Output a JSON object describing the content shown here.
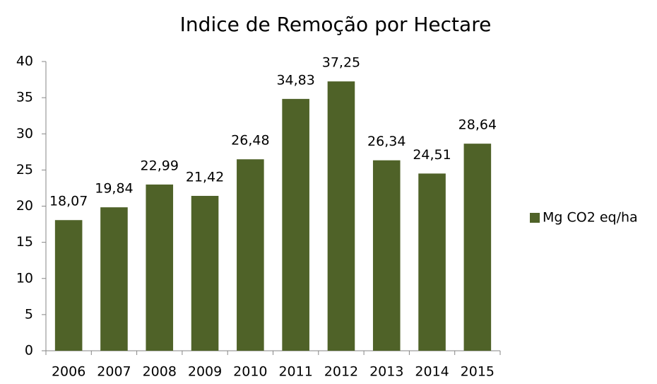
{
  "chart_data": {
    "type": "bar",
    "title": "Indice de Remoção por Hectare",
    "categories": [
      "2006",
      "2007",
      "2008",
      "2009",
      "2010",
      "2011",
      "2012",
      "2013",
      "2014",
      "2015"
    ],
    "series": [
      {
        "name": "Mg CO2 eq/ha",
        "color": "#4f6228",
        "values": [
          18.07,
          19.84,
          22.99,
          21.42,
          26.48,
          34.83,
          37.25,
          26.34,
          24.51,
          28.64
        ],
        "value_labels": [
          "18,07",
          "19,84",
          "22,99",
          "21,42",
          "26,48",
          "34,83",
          "37,25",
          "26,34",
          "24,51",
          "28,64"
        ]
      }
    ],
    "ylim": [
      0,
      40
    ],
    "yticks": [
      0,
      5,
      10,
      15,
      20,
      25,
      30,
      35,
      40
    ],
    "grid": false,
    "legend": "right"
  }
}
